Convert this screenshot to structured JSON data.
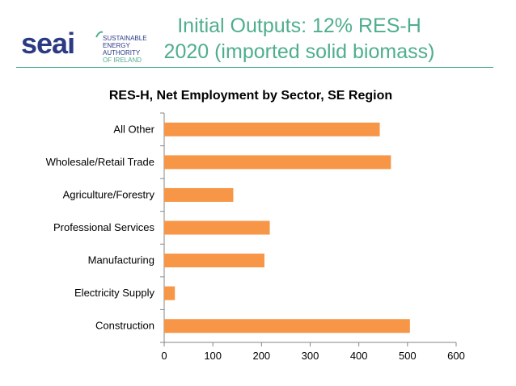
{
  "header": {
    "logo_text": "seai",
    "logo_lines": [
      "SUSTAINABLE",
      "ENERGY AUTHORITY",
      "OF IRELAND"
    ],
    "title_line1": "Initial Outputs: 12% RES-H",
    "title_line2": "2020 (imported solid biomass)"
  },
  "colors": {
    "bar": "#f79646",
    "accent": "#4fae8c",
    "brand": "#2b3a84"
  },
  "chart_data": {
    "type": "bar",
    "orientation": "horizontal",
    "title": "RES-H, Net Employment by Sector, SE Region",
    "categories": [
      "All Other",
      "Wholesale/Retail Trade",
      "Agriculture/Forestry",
      "Professional Services",
      "Manufacturing",
      "Electricity Supply",
      "Construction"
    ],
    "values": [
      443,
      466,
      142,
      217,
      206,
      22,
      505
    ],
    "xlim": [
      0,
      600
    ],
    "xticks": [
      0,
      100,
      200,
      300,
      400,
      500,
      600
    ],
    "xlabel": "",
    "ylabel": "",
    "grid": false,
    "legend": "none"
  }
}
